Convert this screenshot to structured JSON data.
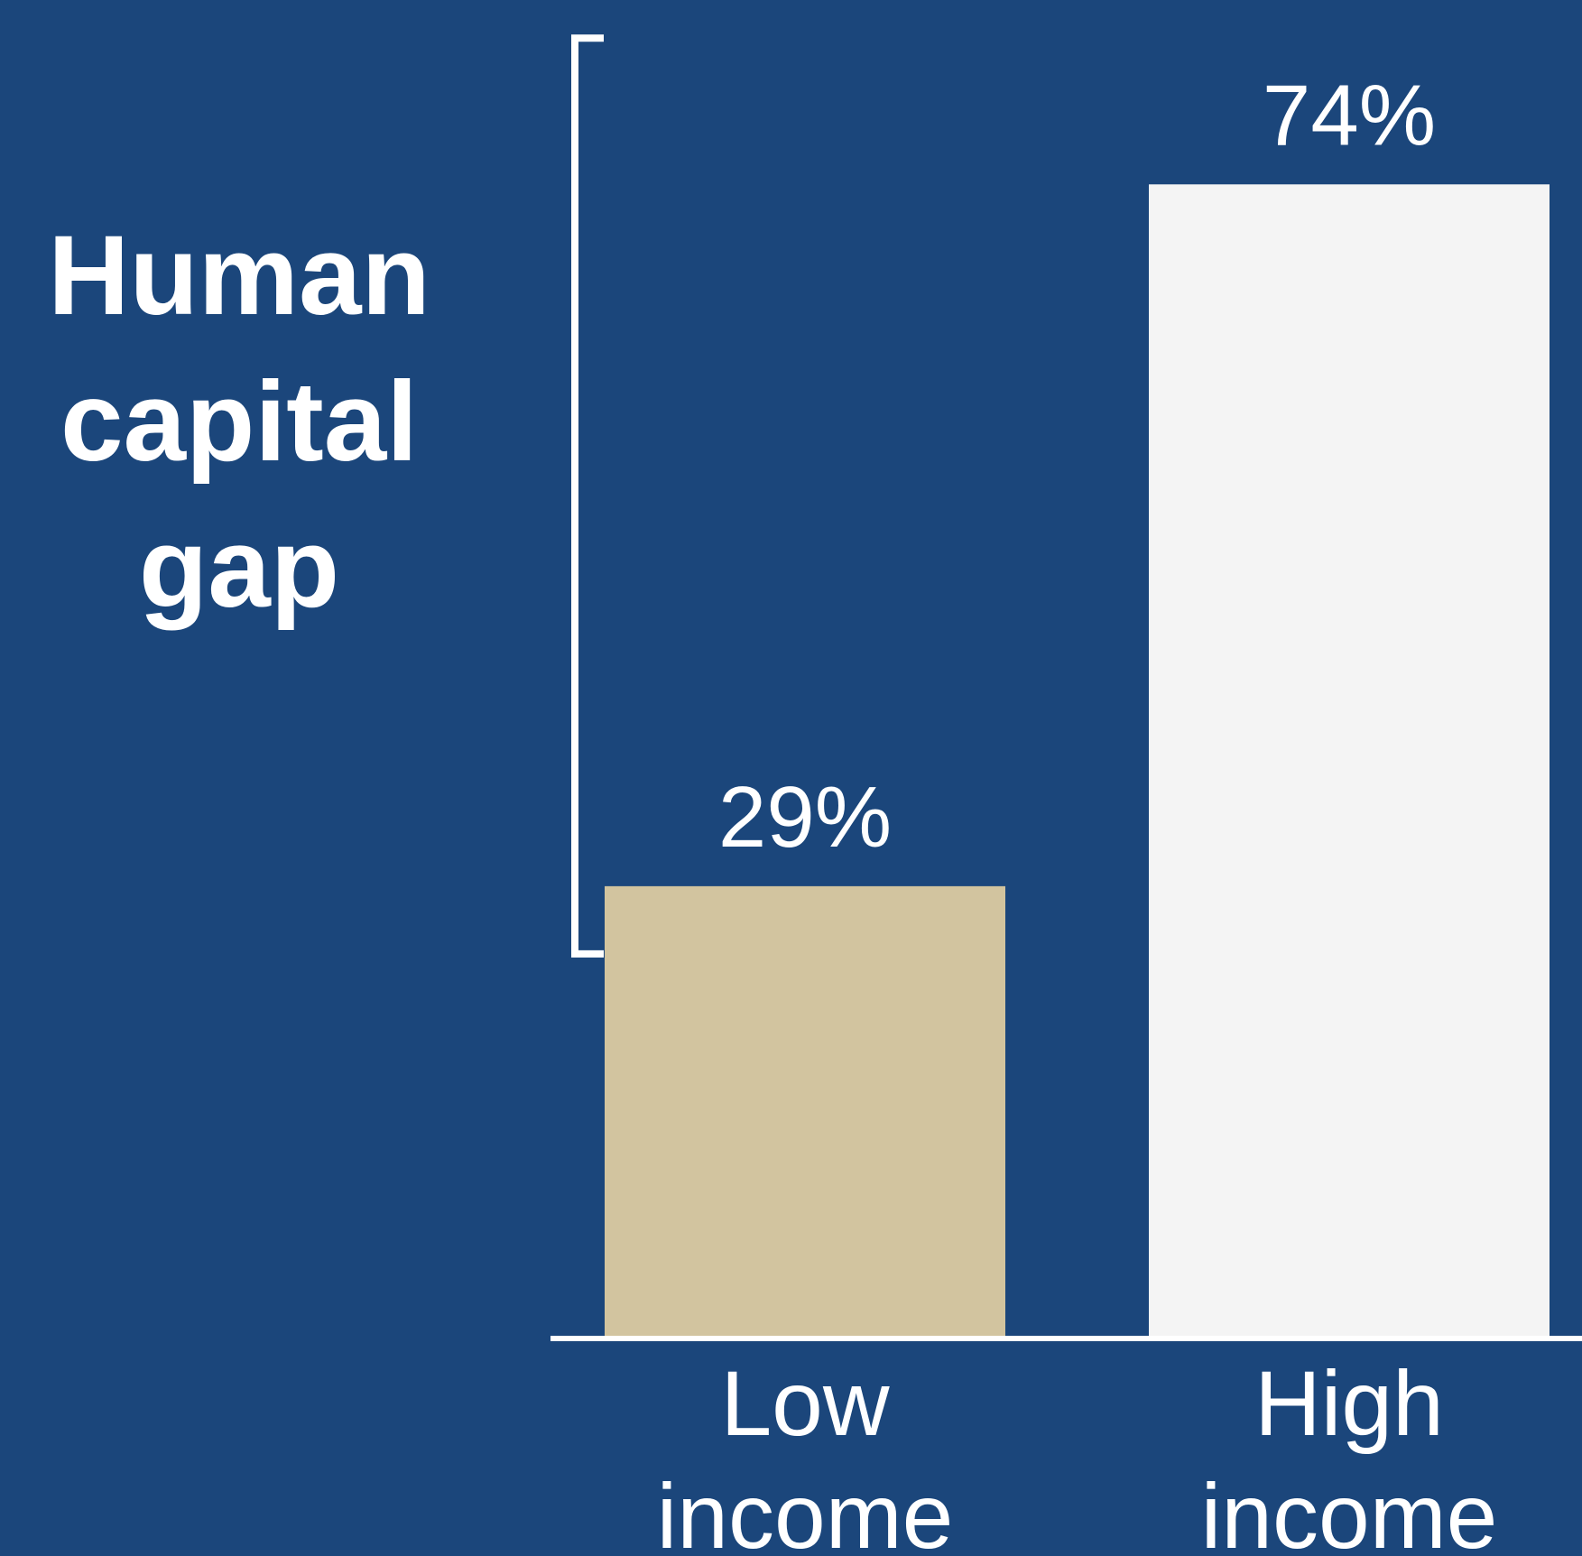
{
  "chart_data": {
    "type": "bar",
    "categories": [
      "Low income",
      "High income"
    ],
    "category_lines": [
      [
        "Low",
        "income"
      ],
      [
        "High",
        "income"
      ]
    ],
    "values": [
      29,
      74
    ],
    "value_labels": [
      "29%",
      "74%"
    ],
    "unit": "%",
    "title": "",
    "xlabel": "",
    "ylabel": "",
    "ylim": [
      0,
      80
    ],
    "grid": false,
    "legend": "none",
    "annotation": {
      "type": "bracket",
      "from_value": 29,
      "to_value": 74,
      "lines": [
        "Human",
        "capital",
        "gap"
      ]
    },
    "colors": {
      "background": "#1b467b",
      "bars": [
        "#d2c49f",
        "#f4f4f4"
      ],
      "text": "#ffffff",
      "axis": "#ffffff"
    }
  }
}
